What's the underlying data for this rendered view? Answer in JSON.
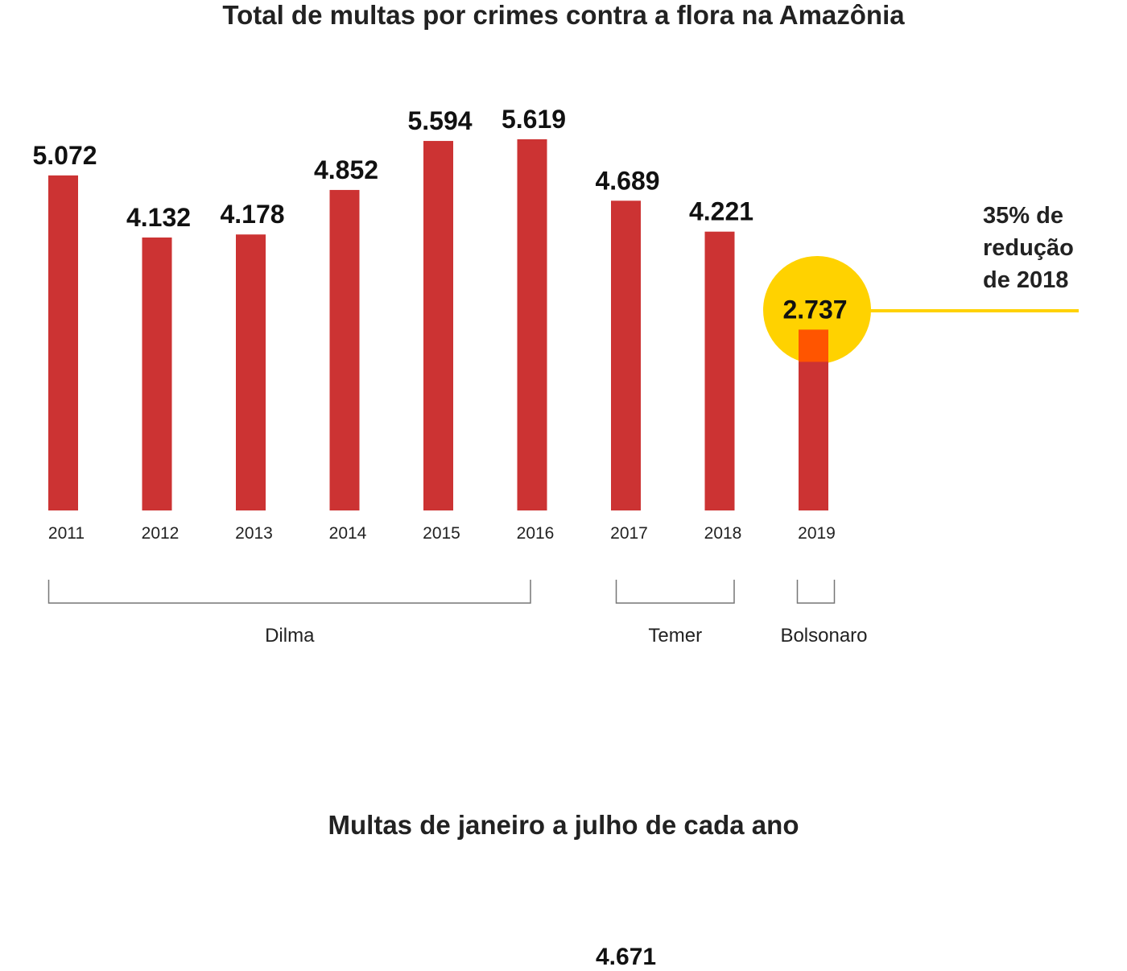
{
  "chart_data": [
    {
      "type": "bar",
      "title": "Total de multas por crimes contra a flora na Amazônia",
      "categories": [
        "2011",
        "2012",
        "2013",
        "2014",
        "2015",
        "2016",
        "2017",
        "2018",
        "2019"
      ],
      "values": [
        5072,
        4132,
        4178,
        4852,
        5594,
        5619,
        4689,
        4221,
        2737
      ],
      "value_labels": [
        "5.072",
        "4.132",
        "4.178",
        "4.852",
        "5.594",
        "5.619",
        "4.689",
        "4.221",
        "2.737"
      ],
      "ylim": [
        0,
        5619
      ],
      "grid": false,
      "bar_color": "#cc3333",
      "highlight": {
        "category": "2019",
        "circle_color": "#ffd200",
        "bar_overlap_color": "#ff5500"
      },
      "annotation": {
        "lines": [
          "35% de",
          "redução",
          "de 2018"
        ],
        "line_color": "#ffd200"
      },
      "groups": [
        {
          "label": "Dilma",
          "from": "2011",
          "to": "2016"
        },
        {
          "label": "Temer",
          "from": "2017",
          "to": "2018"
        },
        {
          "label": "Bolsonaro",
          "from": "2019",
          "to": "2019"
        }
      ]
    },
    {
      "type": "bar",
      "title": "Multas de janeiro a julho de cada ano",
      "value_labels": [
        "4.671"
      ]
    }
  ]
}
